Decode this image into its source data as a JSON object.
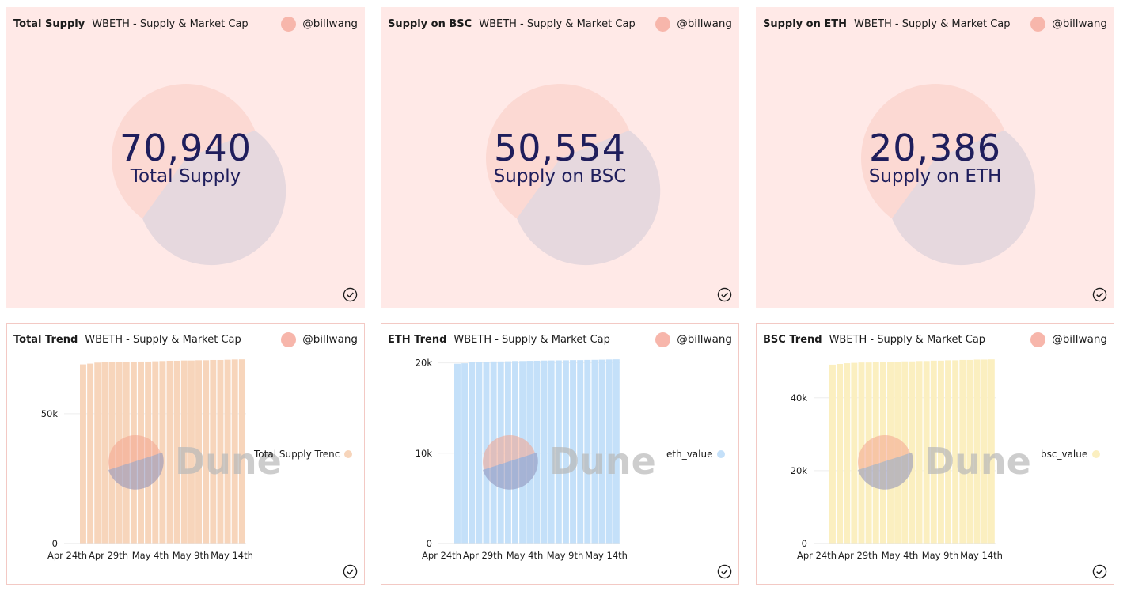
{
  "author": "@billwang",
  "query_title": "WBETH - Supply & Market Cap",
  "counters": [
    {
      "title": "Total Supply",
      "value": "70,940",
      "label": "Total Supply"
    },
    {
      "title": "Supply on BSC",
      "value": "50,554",
      "label": "Supply on BSC"
    },
    {
      "title": "Supply on ETH",
      "value": "20,386",
      "label": "Supply on ETH"
    }
  ],
  "watermark": "Dune",
  "chart_data": [
    {
      "type": "bar",
      "title": "Total Trend",
      "legend": "Total Supply Trenc",
      "color": "#f7d5bb",
      "ylim": [
        0,
        71000
      ],
      "yticks": [
        {
          "v": 0,
          "label": "0"
        },
        {
          "v": 50000,
          "label": "50k"
        }
      ],
      "xticks": [
        "Apr 24th",
        "Apr 29th",
        "May 4th",
        "May 9th",
        "May 14th"
      ],
      "values": [
        69000,
        69300,
        69700,
        69800,
        69900,
        69900,
        70000,
        70000,
        70100,
        70100,
        70200,
        70300,
        70400,
        70400,
        70500,
        70500,
        70600,
        70600,
        70700,
        70700,
        70800,
        70900,
        70940
      ]
    },
    {
      "type": "bar",
      "title": "ETH Trend",
      "legend": "eth_value",
      "color": "#c4e0f9",
      "ylim": [
        0,
        20400
      ],
      "yticks": [
        {
          "v": 0,
          "label": "0"
        },
        {
          "v": 10000,
          "label": "10k"
        },
        {
          "v": 20000,
          "label": "20k"
        }
      ],
      "xticks": [
        "Apr 24th",
        "Apr 29th",
        "May 4th",
        "May 9th",
        "May 14th"
      ],
      "values": [
        19900,
        19950,
        20050,
        20100,
        20120,
        20150,
        20150,
        20170,
        20200,
        20200,
        20220,
        20230,
        20250,
        20260,
        20270,
        20280,
        20300,
        20300,
        20320,
        20330,
        20350,
        20370,
        20386
      ]
    },
    {
      "type": "bar",
      "title": "BSC Trend",
      "legend": "bsc_value",
      "color": "#fbefc0",
      "ylim": [
        0,
        50600
      ],
      "yticks": [
        {
          "v": 0,
          "label": "0"
        },
        {
          "v": 20000,
          "label": "20k"
        },
        {
          "v": 40000,
          "label": "40k"
        }
      ],
      "xticks": [
        "Apr 24th",
        "Apr 29th",
        "May 4th",
        "May 9th",
        "May 14th"
      ],
      "values": [
        49100,
        49300,
        49500,
        49600,
        49700,
        49700,
        49800,
        49800,
        49900,
        49900,
        50000,
        50000,
        50100,
        50100,
        50200,
        50200,
        50300,
        50300,
        50400,
        50400,
        50500,
        50500,
        50554
      ]
    }
  ]
}
